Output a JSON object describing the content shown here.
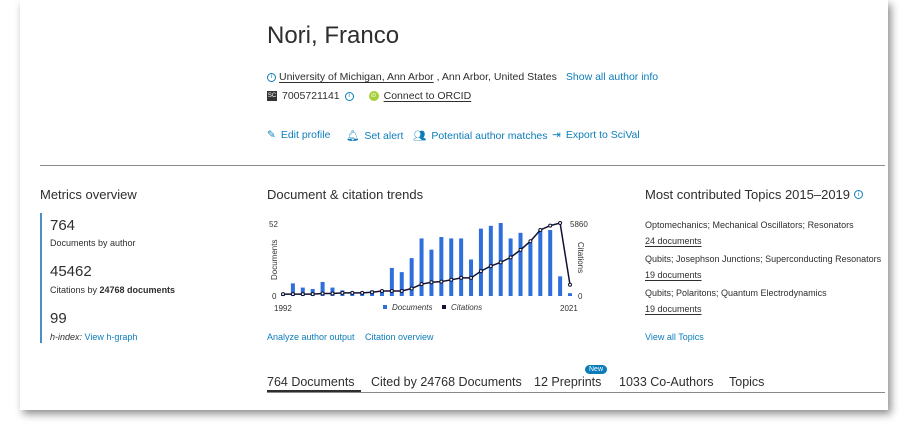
{
  "author": {
    "name": "Nori, Franco",
    "affiliation_link": "University of Michigan, Ann Arbor",
    "affiliation_rest": ", Ann Arbor, United States",
    "show_all": "Show all author info",
    "scopus_badge": "SC",
    "author_id": "7005721141",
    "orcid_badge": "iD",
    "orcid_link": "Connect to ORCID"
  },
  "actions": [
    {
      "label": "Edit profile",
      "icon": "pencil-icon"
    },
    {
      "label": "Set alert",
      "icon": "bell-icon"
    },
    {
      "label": "Potential author matches",
      "icon": "people-icon"
    },
    {
      "label": "Export to SciVal",
      "icon": "export-icon"
    }
  ],
  "metrics": {
    "title": "Metrics overview",
    "documents": "764",
    "documents_label": "Documents by author",
    "citations": "45462",
    "citations_label_pre": "Citations by ",
    "citations_label_bold": "24768 documents",
    "hindex": "99",
    "hindex_label": "h-index:",
    "hgraph_link": "View h-graph"
  },
  "trends": {
    "title": "Document & citation trends",
    "analyze_link": "Analyze author output",
    "citation_link": "Citation overview"
  },
  "chart_data": {
    "type": "bar+line",
    "x": [
      1992,
      1993,
      1994,
      1995,
      1996,
      1997,
      1998,
      1999,
      2000,
      2001,
      2002,
      2003,
      2004,
      2005,
      2006,
      2007,
      2008,
      2009,
      2010,
      2011,
      2012,
      2013,
      2014,
      2015,
      2016,
      2017,
      2018,
      2019,
      2020,
      2021
    ],
    "series": [
      {
        "name": "Documents",
        "type": "bar",
        "axis": "left",
        "color": "#2f6fdb",
        "values": [
          1,
          9,
          6,
          5,
          10,
          6,
          4,
          3,
          3,
          4,
          4,
          20,
          17,
          27,
          41,
          33,
          42,
          41,
          41,
          26,
          48,
          50,
          52,
          41,
          45,
          38,
          47,
          47,
          14,
          2
        ]
      },
      {
        "name": "Citations",
        "type": "line",
        "axis": "right",
        "color": "#111133",
        "values": [
          150,
          150,
          150,
          150,
          200,
          200,
          250,
          250,
          250,
          300,
          400,
          400,
          400,
          600,
          950,
          1100,
          1150,
          1300,
          1450,
          1450,
          2000,
          2400,
          2700,
          3100,
          3700,
          4400,
          5300,
          5650,
          5860,
          900
        ]
      }
    ],
    "ylabel_left": "Documents",
    "ylabel_right": "Citations",
    "ylim_left": [
      0,
      52
    ],
    "ylim_right": [
      0,
      5860
    ],
    "yticks_left": [
      "52",
      "0"
    ],
    "yticks_right": [
      "5860",
      "0"
    ],
    "xticks": [
      "1992",
      "2021"
    ],
    "legend_position": "bottom"
  },
  "topics": {
    "title": "Most contributed Topics 2015–2019",
    "items": [
      {
        "name": "Optomechanics; Mechanical Oscillators; Resonators",
        "count": "24 documents"
      },
      {
        "name": "Qubits; Josephson Junctions; Superconducting Resonators",
        "count": "19 documents"
      },
      {
        "name": "Qubits; Polaritons; Quantum Electrodynamics",
        "count": "19 documents"
      }
    ],
    "view_all": "View all Topics"
  },
  "tabs": [
    {
      "label": "764 Documents",
      "active": true
    },
    {
      "label": "Cited by 24768 Documents"
    },
    {
      "label": "12 Preprints",
      "badge": "New"
    },
    {
      "label": "1033 Co-Authors"
    },
    {
      "label": "Topics"
    }
  ],
  "colors": {
    "accent": "#0c7dbb",
    "bar": "#2f6fdb",
    "line": "#111133",
    "metric_border": "#4a90c8"
  }
}
